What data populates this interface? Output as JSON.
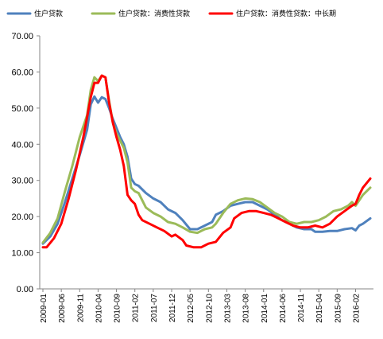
{
  "chart_data": {
    "type": "line",
    "title": "",
    "xlabel": "",
    "ylabel": "",
    "ylim": [
      0,
      70
    ],
    "yticks": [
      "0.00",
      "10.00",
      "20.00",
      "30.00",
      "40.00",
      "50.00",
      "60.00",
      "70.00"
    ],
    "xtick_labels": [
      "2009-01",
      "2009-06",
      "2009-11",
      "2010-04",
      "2010-09",
      "2011-02",
      "2011-07",
      "2011-12",
      "2012-05",
      "2012-10",
      "2013-03",
      "2013-08",
      "2014-01",
      "2014-06",
      "2014-11",
      "2015-04",
      "2015-09",
      "2016-02"
    ],
    "x_start": "2009-01",
    "x_end": "2016-06",
    "legend_position": "top",
    "grid": false,
    "series": [
      {
        "name": "住户贷款",
        "color": "#4F81BD",
        "points": [
          [
            "2009-01",
            12.5
          ],
          [
            "2009-03",
            14.5
          ],
          [
            "2009-05",
            18.0
          ],
          [
            "2009-07",
            24.0
          ],
          [
            "2009-09",
            30.5
          ],
          [
            "2009-11",
            37.0
          ],
          [
            "2010-01",
            44.0
          ],
          [
            "2010-02",
            51.0
          ],
          [
            "2010-03",
            53.2
          ],
          [
            "2010-04",
            51.5
          ],
          [
            "2010-05",
            53.0
          ],
          [
            "2010-06",
            52.5
          ],
          [
            "2010-07",
            50.0
          ],
          [
            "2010-08",
            47.0
          ],
          [
            "2010-09",
            44.5
          ],
          [
            "2010-10",
            42.0
          ],
          [
            "2010-11",
            40.0
          ],
          [
            "2010-12",
            36.5
          ],
          [
            "2011-01",
            30.5
          ],
          [
            "2011-02",
            29.0
          ],
          [
            "2011-03",
            28.5
          ],
          [
            "2011-05",
            26.5
          ],
          [
            "2011-07",
            25.0
          ],
          [
            "2011-09",
            24.0
          ],
          [
            "2011-11",
            22.0
          ],
          [
            "2012-01",
            21.0
          ],
          [
            "2012-03",
            19.0
          ],
          [
            "2012-05",
            16.5
          ],
          [
            "2012-07",
            16.5
          ],
          [
            "2012-09",
            17.5
          ],
          [
            "2012-11",
            18.5
          ],
          [
            "2012-12",
            20.5
          ],
          [
            "2013-02",
            21.5
          ],
          [
            "2013-04",
            23.0
          ],
          [
            "2013-06",
            23.5
          ],
          [
            "2013-08",
            24.0
          ],
          [
            "2013-10",
            24.0
          ],
          [
            "2013-12",
            23.0
          ],
          [
            "2014-02",
            22.0
          ],
          [
            "2014-04",
            20.5
          ],
          [
            "2014-06",
            19.0
          ],
          [
            "2014-08",
            18.0
          ],
          [
            "2014-10",
            17.0
          ],
          [
            "2014-12",
            16.5
          ],
          [
            "2015-02",
            16.5
          ],
          [
            "2015-03",
            15.8
          ],
          [
            "2015-05",
            15.8
          ],
          [
            "2015-07",
            16.0
          ],
          [
            "2015-09",
            16.0
          ],
          [
            "2015-11",
            16.5
          ],
          [
            "2016-01",
            16.8
          ],
          [
            "2016-02",
            16.2
          ],
          [
            "2016-03",
            17.5
          ],
          [
            "2016-04",
            18.0
          ],
          [
            "2016-06",
            19.5
          ]
        ]
      },
      {
        "name": "住户贷款：消费性贷款",
        "color": "#9BBB59",
        "points": [
          [
            "2009-01",
            12.8
          ],
          [
            "2009-03",
            15.5
          ],
          [
            "2009-05",
            19.5
          ],
          [
            "2009-07",
            27.0
          ],
          [
            "2009-09",
            34.0
          ],
          [
            "2009-11",
            42.0
          ],
          [
            "2010-01",
            48.0
          ],
          [
            "2010-02",
            55.0
          ],
          [
            "2010-03",
            58.5
          ],
          [
            "2010-04",
            57.5
          ],
          [
            "2010-05",
            59.0
          ],
          [
            "2010-06",
            58.5
          ],
          [
            "2010-07",
            52.0
          ],
          [
            "2010-08",
            46.0
          ],
          [
            "2010-09",
            43.0
          ],
          [
            "2010-10",
            41.0
          ],
          [
            "2010-11",
            39.0
          ],
          [
            "2010-12",
            35.0
          ],
          [
            "2011-01",
            28.0
          ],
          [
            "2011-02",
            27.0
          ],
          [
            "2011-03",
            26.5
          ],
          [
            "2011-05",
            22.5
          ],
          [
            "2011-07",
            21.0
          ],
          [
            "2011-09",
            20.0
          ],
          [
            "2011-11",
            18.5
          ],
          [
            "2012-01",
            18.0
          ],
          [
            "2012-03",
            17.0
          ],
          [
            "2012-05",
            15.8
          ],
          [
            "2012-07",
            15.5
          ],
          [
            "2012-09",
            16.5
          ],
          [
            "2012-11",
            17.0
          ],
          [
            "2012-12",
            18.0
          ],
          [
            "2013-02",
            21.0
          ],
          [
            "2013-04",
            23.5
          ],
          [
            "2013-06",
            24.5
          ],
          [
            "2013-08",
            25.0
          ],
          [
            "2013-10",
            24.8
          ],
          [
            "2013-12",
            24.0
          ],
          [
            "2014-02",
            22.5
          ],
          [
            "2014-04",
            21.0
          ],
          [
            "2014-06",
            20.0
          ],
          [
            "2014-08",
            18.5
          ],
          [
            "2014-10",
            18.0
          ],
          [
            "2014-12",
            18.5
          ],
          [
            "2015-02",
            18.5
          ],
          [
            "2015-04",
            19.0
          ],
          [
            "2015-06",
            20.0
          ],
          [
            "2015-08",
            21.5
          ],
          [
            "2015-10",
            22.0
          ],
          [
            "2015-12",
            23.0
          ],
          [
            "2016-01",
            24.0
          ],
          [
            "2016-02",
            23.0
          ],
          [
            "2016-03",
            24.5
          ],
          [
            "2016-04",
            26.0
          ],
          [
            "2016-06",
            28.0
          ]
        ]
      },
      {
        "name": "住户贷款：消费性贷款：中长期",
        "color": "#FF0000",
        "points": [
          [
            "2009-01",
            11.5
          ],
          [
            "2009-02",
            11.5
          ],
          [
            "2009-04",
            14.0
          ],
          [
            "2009-06",
            18.0
          ],
          [
            "2009-08",
            25.0
          ],
          [
            "2009-10",
            33.0
          ],
          [
            "2009-12",
            42.0
          ],
          [
            "2010-01",
            47.5
          ],
          [
            "2010-02",
            53.0
          ],
          [
            "2010-03",
            57.0
          ],
          [
            "2010-04",
            57.0
          ],
          [
            "2010-05",
            59.0
          ],
          [
            "2010-06",
            58.5
          ],
          [
            "2010-07",
            51.5
          ],
          [
            "2010-08",
            46.0
          ],
          [
            "2010-09",
            42.0
          ],
          [
            "2010-10",
            38.5
          ],
          [
            "2010-11",
            34.0
          ],
          [
            "2010-12",
            26.0
          ],
          [
            "2011-01",
            24.5
          ],
          [
            "2011-02",
            23.5
          ],
          [
            "2011-03",
            20.5
          ],
          [
            "2011-04",
            19.0
          ],
          [
            "2011-06",
            18.0
          ],
          [
            "2011-08",
            17.0
          ],
          [
            "2011-10",
            16.0
          ],
          [
            "2011-12",
            14.5
          ],
          [
            "2012-01",
            15.0
          ],
          [
            "2012-03",
            13.5
          ],
          [
            "2012-04",
            12.0
          ],
          [
            "2012-06",
            11.5
          ],
          [
            "2012-08",
            11.5
          ],
          [
            "2012-10",
            12.5
          ],
          [
            "2012-12",
            13.0
          ],
          [
            "2013-02",
            15.5
          ],
          [
            "2013-04",
            17.0
          ],
          [
            "2013-05",
            19.5
          ],
          [
            "2013-07",
            21.0
          ],
          [
            "2013-09",
            21.5
          ],
          [
            "2013-11",
            21.5
          ],
          [
            "2014-01",
            21.0
          ],
          [
            "2014-03",
            20.5
          ],
          [
            "2014-05",
            19.5
          ],
          [
            "2014-07",
            18.5
          ],
          [
            "2014-09",
            17.5
          ],
          [
            "2014-11",
            17.0
          ],
          [
            "2015-01",
            17.0
          ],
          [
            "2015-03",
            17.5
          ],
          [
            "2015-05",
            17.0
          ],
          [
            "2015-07",
            18.0
          ],
          [
            "2015-09",
            20.0
          ],
          [
            "2015-11",
            21.5
          ],
          [
            "2016-01",
            23.0
          ],
          [
            "2016-02",
            23.5
          ],
          [
            "2016-03",
            26.0
          ],
          [
            "2016-04",
            28.0
          ],
          [
            "2016-06",
            30.5
          ]
        ]
      }
    ]
  }
}
